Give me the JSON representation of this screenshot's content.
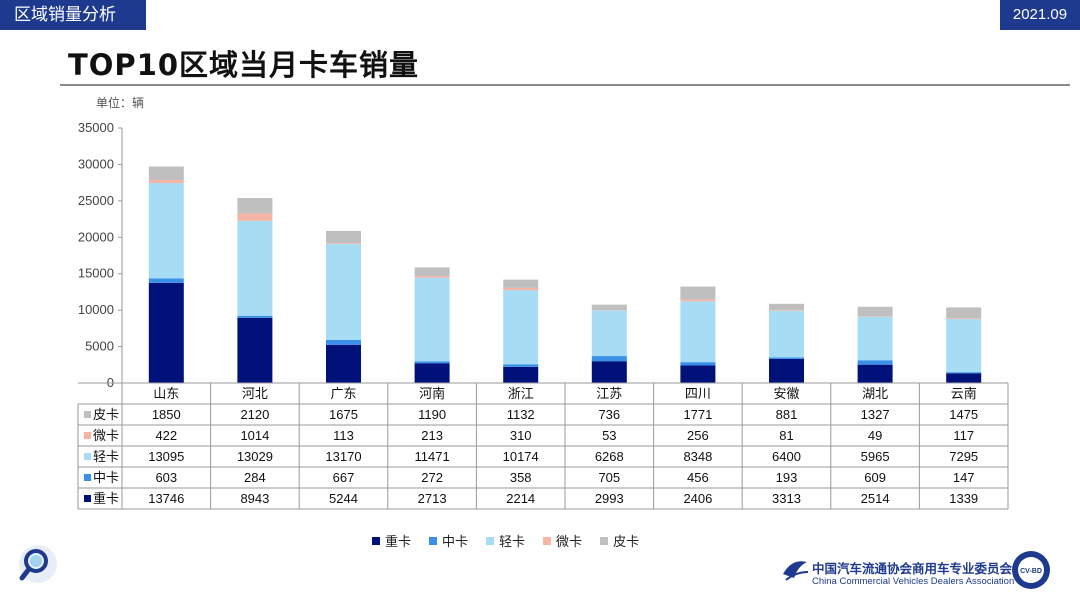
{
  "header": {
    "section_tag": "区域销量分析",
    "date": "2021.09"
  },
  "page_title": "TOP10区域当月卡车销量",
  "unit_label": "单位：辆",
  "chart_data": {
    "type": "bar",
    "stacked": true,
    "title": "TOP10区域当月卡车销量",
    "ylabel": "单位：辆",
    "ylim": [
      0,
      35000
    ],
    "yticks": [
      0,
      5000,
      10000,
      15000,
      20000,
      25000,
      30000,
      35000
    ],
    "categories": [
      "山东",
      "河北",
      "广东",
      "河南",
      "浙江",
      "江苏",
      "四川",
      "安徽",
      "湖北",
      "云南"
    ],
    "series": [
      {
        "name": "重卡",
        "color": "#00127a",
        "values": [
          13746,
          8943,
          5244,
          2713,
          2214,
          2993,
          2406,
          3313,
          2514,
          1339
        ]
      },
      {
        "name": "中卡",
        "color": "#3a8fe8",
        "values": [
          603,
          284,
          667,
          272,
          358,
          705,
          456,
          193,
          609,
          147
        ]
      },
      {
        "name": "轻卡",
        "color": "#a6dcf4",
        "values": [
          13095,
          13029,
          13170,
          11471,
          10174,
          6268,
          8348,
          6400,
          5965,
          7295
        ]
      },
      {
        "name": "微卡",
        "color": "#f6b4a4",
        "values": [
          422,
          1014,
          113,
          213,
          310,
          53,
          256,
          81,
          49,
          117
        ]
      },
      {
        "name": "皮卡",
        "color": "#bfbfbf",
        "values": [
          1850,
          2120,
          1675,
          1190,
          1132,
          736,
          1771,
          881,
          1327,
          1475
        ]
      }
    ],
    "table_row_order": [
      "皮卡",
      "微卡",
      "轻卡",
      "中卡",
      "重卡"
    ],
    "legend_position": "bottom"
  },
  "footer": {
    "association_cn": "中国汽车流通协会商用车专业委员会",
    "association_en": "China Commercial Vehicles Dealers Association",
    "badge_text": "CV-BD"
  }
}
